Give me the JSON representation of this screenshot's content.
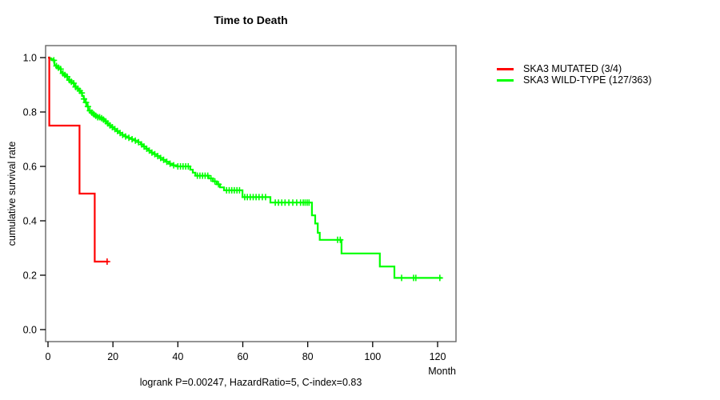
{
  "title": "Time to Death",
  "caption": "logrank P=0.00247, HazardRatio=5, C-index=0.83",
  "axis": {
    "x_label": "Month",
    "y_label": "cumulative survival rate"
  },
  "colors": {
    "mutated": "#ff0000",
    "wildtype": "#00ff00",
    "frame": "#666666",
    "axis_text": "#000000"
  },
  "chart_data": {
    "type": "line",
    "subtype": "kaplan_meier_step",
    "title": "Time to Death",
    "xlabel": "Month",
    "ylabel": "cumulative survival rate",
    "xlim": [
      0,
      126
    ],
    "ylim": [
      0.0,
      1.0
    ],
    "xticks": [
      0,
      20,
      40,
      60,
      80,
      100,
      120
    ],
    "yticks": [
      0.0,
      0.2,
      0.4,
      0.6,
      0.8,
      1.0
    ],
    "grid": false,
    "legend_position": "right",
    "series": [
      {
        "name": "SKA3 MUTATED (3/4)",
        "color": "#ff0000",
        "steps": [
          [
            0,
            1.0
          ],
          [
            0.4,
            0.75
          ],
          [
            9.7,
            0.5
          ],
          [
            14.4,
            0.25
          ],
          [
            18.6,
            0.25
          ]
        ],
        "censor_times": [
          18.2
        ]
      },
      {
        "name": "SKA3 WILD-TYPE (127/363)",
        "color": "#00ff00",
        "steps": [
          [
            0,
            1.0
          ],
          [
            0.5,
            0.997
          ],
          [
            1.0,
            0.994
          ],
          [
            1.5,
            0.99
          ],
          [
            2.0,
            0.972
          ],
          [
            2.5,
            0.969
          ],
          [
            3.0,
            0.963
          ],
          [
            3.5,
            0.958
          ],
          [
            4.0,
            0.947
          ],
          [
            4.5,
            0.942
          ],
          [
            5.0,
            0.936
          ],
          [
            5.5,
            0.93
          ],
          [
            6.0,
            0.922
          ],
          [
            6.5,
            0.917
          ],
          [
            7.0,
            0.911
          ],
          [
            7.5,
            0.906
          ],
          [
            8.0,
            0.897
          ],
          [
            8.5,
            0.892
          ],
          [
            9.0,
            0.886
          ],
          [
            9.5,
            0.878
          ],
          [
            10.0,
            0.87
          ],
          [
            10.5,
            0.859
          ],
          [
            11.0,
            0.848
          ],
          [
            11.5,
            0.835
          ],
          [
            12.0,
            0.82
          ],
          [
            12.4,
            0.805
          ],
          [
            13.0,
            0.798
          ],
          [
            13.6,
            0.792
          ],
          [
            14.2,
            0.786
          ],
          [
            15.0,
            0.781
          ],
          [
            16.0,
            0.777
          ],
          [
            17.0,
            0.772
          ],
          [
            17.6,
            0.766
          ],
          [
            18.2,
            0.758
          ],
          [
            18.9,
            0.751
          ],
          [
            19.6,
            0.744
          ],
          [
            20.4,
            0.737
          ],
          [
            21.2,
            0.73
          ],
          [
            22.0,
            0.723
          ],
          [
            22.9,
            0.716
          ],
          [
            23.8,
            0.71
          ],
          [
            24.8,
            0.705
          ],
          [
            25.8,
            0.7
          ],
          [
            26.8,
            0.695
          ],
          [
            27.8,
            0.689
          ],
          [
            28.6,
            0.681
          ],
          [
            29.4,
            0.673
          ],
          [
            30.2,
            0.665
          ],
          [
            31.0,
            0.658
          ],
          [
            31.8,
            0.651
          ],
          [
            32.7,
            0.645
          ],
          [
            33.6,
            0.638
          ],
          [
            34.5,
            0.631
          ],
          [
            35.4,
            0.624
          ],
          [
            36.3,
            0.617
          ],
          [
            37.2,
            0.61
          ],
          [
            38.3,
            0.604
          ],
          [
            39.5,
            0.6
          ],
          [
            43.8,
            0.588
          ],
          [
            44.6,
            0.577
          ],
          [
            45.4,
            0.566
          ],
          [
            49.5,
            0.556
          ],
          [
            50.8,
            0.545
          ],
          [
            52.0,
            0.534
          ],
          [
            53.0,
            0.523
          ],
          [
            54.2,
            0.512
          ],
          [
            59.9,
            0.487
          ],
          [
            68.5,
            0.467
          ],
          [
            81.3,
            0.42
          ],
          [
            82.3,
            0.39
          ],
          [
            83.1,
            0.356
          ],
          [
            83.7,
            0.33
          ],
          [
            90.4,
            0.28
          ],
          [
            102.2,
            0.232
          ],
          [
            106.7,
            0.19
          ],
          [
            121.3,
            0.19
          ]
        ],
        "censor_times": [
          1.8,
          2.6,
          3.2,
          3.9,
          4.6,
          5.2,
          5.9,
          6.6,
          7.2,
          7.9,
          8.5,
          9.2,
          9.8,
          10.4,
          11.1,
          11.7,
          12.3,
          12.9,
          13.5,
          14.1,
          14.7,
          15.3,
          15.9,
          16.5,
          17.1,
          17.8,
          18.4,
          19.1,
          19.8,
          20.6,
          21.4,
          22.2,
          23.0,
          23.9,
          24.9,
          25.9,
          26.9,
          27.9,
          28.8,
          29.6,
          30.4,
          31.2,
          32.0,
          32.9,
          33.8,
          34.7,
          35.6,
          36.6,
          37.6,
          38.7,
          40.0,
          40.8,
          41.6,
          42.4,
          43.2,
          46.0,
          46.8,
          47.6,
          48.4,
          49.2,
          50.2,
          51.4,
          52.5,
          55.0,
          55.8,
          56.6,
          57.4,
          58.2,
          59.0,
          60.6,
          61.4,
          62.3,
          63.2,
          64.1,
          65.0,
          66.0,
          67.0,
          70.0,
          71.0,
          72.0,
          73.0,
          74.2,
          75.4,
          76.6,
          77.8,
          78.6,
          79.2,
          79.8,
          80.4,
          89.2,
          90.0,
          108.9,
          112.6,
          113.3,
          120.7
        ]
      }
    ]
  }
}
